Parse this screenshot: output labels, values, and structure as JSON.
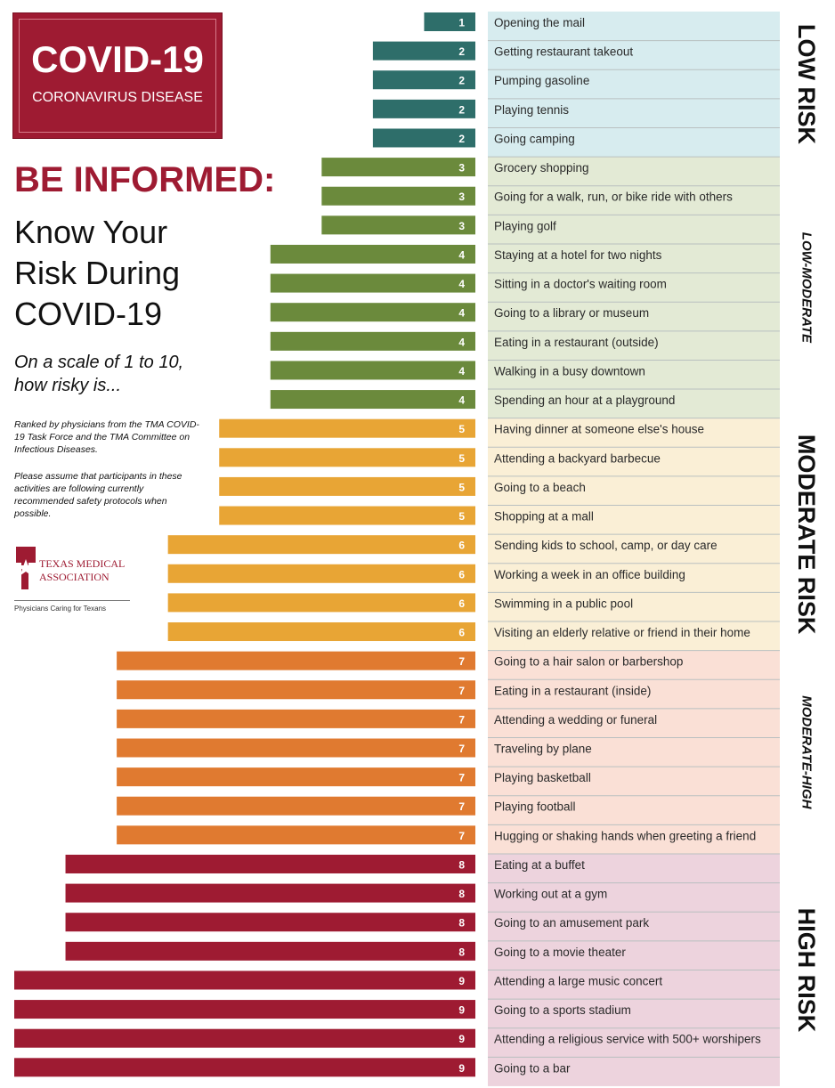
{
  "header": {
    "logo_title": "COVID-19",
    "logo_subtitle": "CORONAVIRUS DISEASE",
    "headline": "BE INFORMED:",
    "subhead_lines": [
      "Know Your",
      "Risk During",
      "COVID-19"
    ],
    "scale_lines": [
      "On a scale of 1 to 10,",
      "how risky is..."
    ],
    "ranked_note": "Ranked by physicians from the TMA COVID-19 Task Force and the TMA Committee on Infectious Diseases.",
    "assume_note": "Please assume that participants in these activities are following currently recommended safety protocols when possible.",
    "org_name_lines": [
      "TEXAS MEDICAL",
      "ASSOCIATION"
    ],
    "org_tagline": "Physicians Caring for Texans"
  },
  "colors": {
    "brand_red": "#9e1b32",
    "score_colors": {
      "1": "#2e6e6a",
      "2": "#2e6e6a",
      "3": "#6b8a3c",
      "4": "#6b8a3c",
      "5": "#e8a535",
      "6": "#e8a535",
      "7": "#e07a30",
      "8": "#9e1b32",
      "9": "#9e1b32"
    },
    "band_backgrounds": {
      "low": "#d7ecef",
      "low-moderate": "#e3ead5",
      "moderate": "#faefd6",
      "moderate-high": "#fae0d6",
      "high": "#edd3dd"
    }
  },
  "chart_data": {
    "type": "bar",
    "orientation": "horizontal",
    "xlim": [
      0,
      9
    ],
    "categories": [
      "Opening the mail",
      "Getting restaurant takeout",
      "Pumping gasoline",
      "Playing tennis",
      "Going camping",
      "Grocery shopping",
      "Going for a walk, run, or bike ride with others",
      "Playing golf",
      "Staying at a hotel for two nights",
      "Sitting in a doctor's waiting room",
      "Going to a library or museum",
      "Eating in a restaurant (outside)",
      "Walking in a busy downtown",
      "Spending an hour at a playground",
      "Having dinner at someone else's house",
      "Attending a backyard barbecue",
      "Going to a beach",
      "Shopping at a mall",
      "Sending kids to school, camp, or day care",
      "Working a week in an office building",
      "Swimming in a public pool",
      "Visiting an elderly relative or friend in their home",
      "Going to a hair salon or barbershop",
      "Eating in a restaurant (inside)",
      "Attending a wedding or funeral",
      "Traveling by plane",
      "Playing basketball",
      "Playing football",
      "Hugging or shaking hands when greeting a friend",
      "Eating at a buffet",
      "Working out at a gym",
      "Going to an amusement park",
      "Going to a movie theater",
      "Attending a large music concert",
      "Going to a sports stadium",
      "Attending a religious service with 500+ worshipers",
      "Going to a bar"
    ],
    "values": [
      1,
      2,
      2,
      2,
      2,
      3,
      3,
      3,
      4,
      4,
      4,
      4,
      4,
      4,
      5,
      5,
      5,
      5,
      6,
      6,
      6,
      6,
      7,
      7,
      7,
      7,
      7,
      7,
      7,
      8,
      8,
      8,
      8,
      9,
      9,
      9,
      9
    ],
    "bands": [
      {
        "key": "low",
        "label": "LOW RISK",
        "scores": [
          1,
          2
        ]
      },
      {
        "key": "low-moderate",
        "label": "LOW-MODERATE",
        "scores": [
          3,
          4
        ]
      },
      {
        "key": "moderate",
        "label": "MODERATE RISK",
        "scores": [
          5,
          6
        ]
      },
      {
        "key": "moderate-high",
        "label": "MODERATE-HIGH",
        "scores": [
          7
        ]
      },
      {
        "key": "high",
        "label": "HIGH RISK",
        "scores": [
          8,
          9
        ]
      }
    ]
  }
}
